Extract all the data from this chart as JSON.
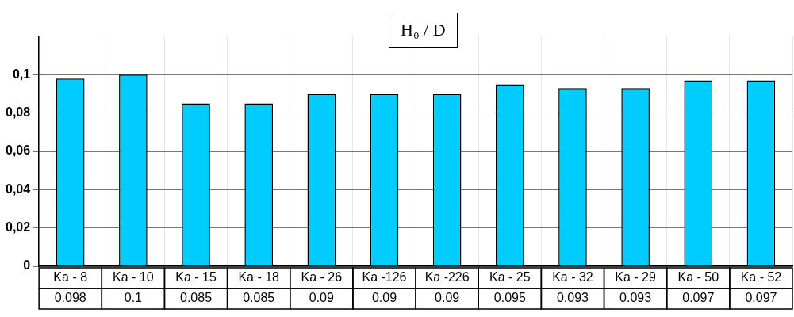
{
  "chart_data": {
    "type": "bar",
    "title": "H₀ / D",
    "categories": [
      "Ka - 8",
      "Ka - 10",
      "Ka - 15",
      "Ka - 18",
      "Ka - 26",
      "Ka -126",
      "Ka -226",
      "Ka - 25",
      "Ka - 32",
      "Ka - 29",
      "Ka - 50",
      "Ka - 52"
    ],
    "values": [
      0.098,
      0.1,
      0.085,
      0.085,
      0.09,
      0.09,
      0.09,
      0.095,
      0.093,
      0.093,
      0.097,
      0.097
    ],
    "color": "#00ccff",
    "ylim": [
      0,
      0.12
    ],
    "yticks": [
      0,
      {
        "value": 0.02,
        "label": "0,02"
      },
      {
        "value": 0.04,
        "label": "0,04"
      },
      {
        "value": 0.06,
        "label": "0,06"
      },
      {
        "value": 0.08,
        "label": "0,08"
      },
      {
        "value": 0.1,
        "label": "0,1"
      }
    ],
    "grid": true,
    "legend": false,
    "data_labels": true
  }
}
